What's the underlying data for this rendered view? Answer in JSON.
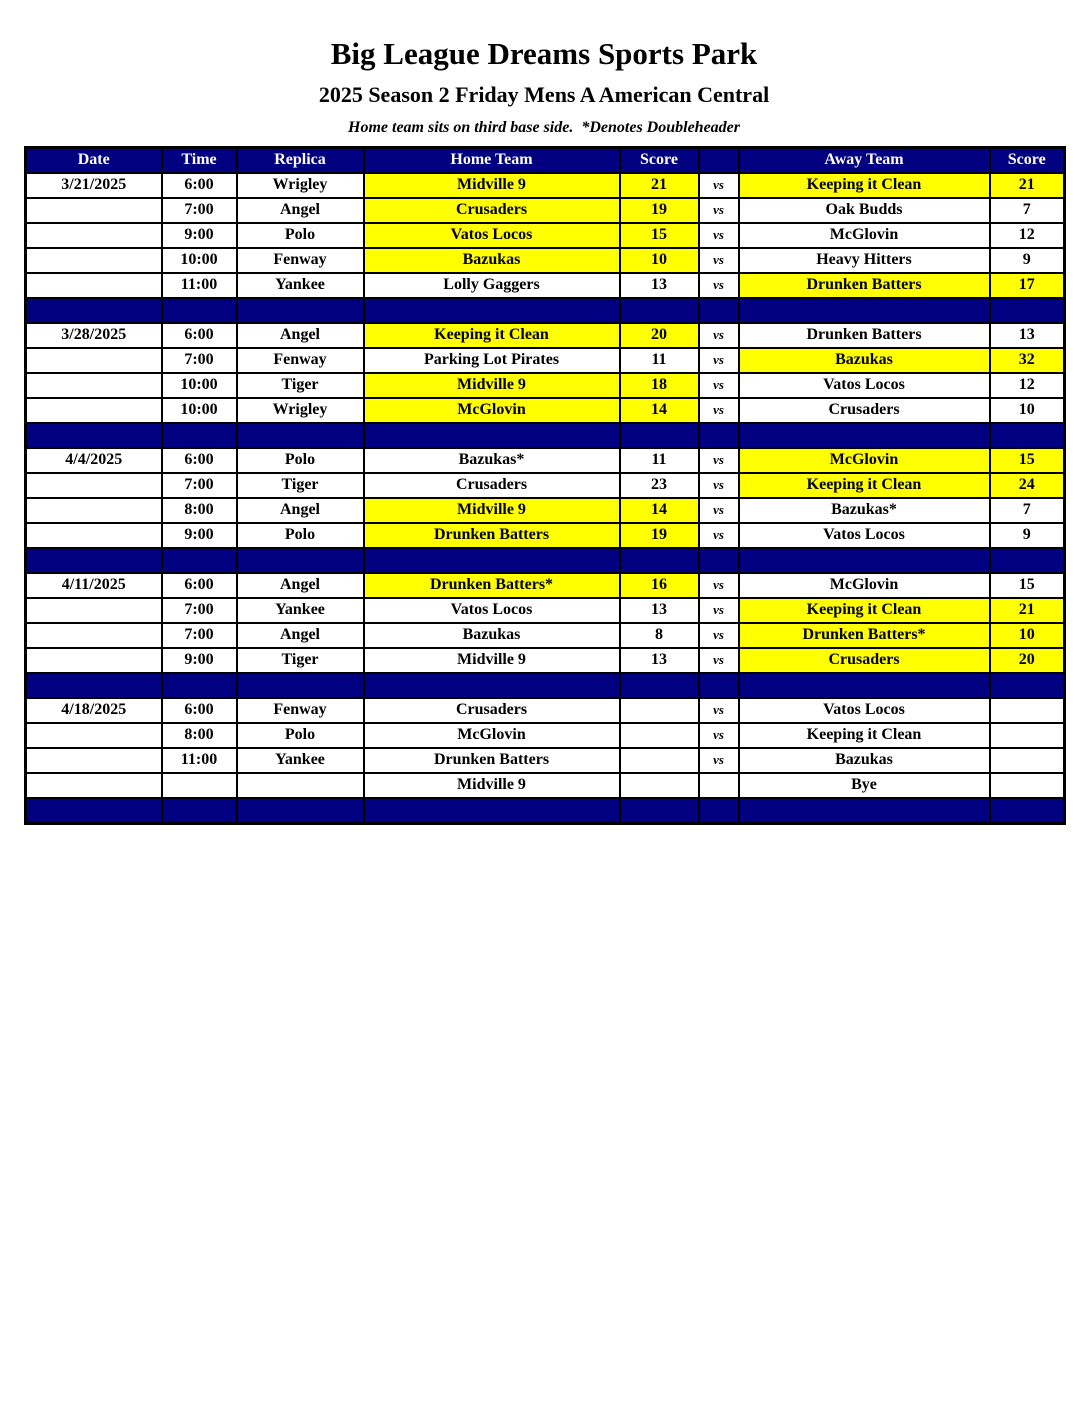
{
  "header": {
    "title": "Big League Dreams Sports Park",
    "subtitle": "2025 Season 2 Friday Mens A American Central",
    "note": "Home team sits on third base side.  *Denotes Doubleheader"
  },
  "colors": {
    "navy_header_bg": "#000080",
    "separator_bg": "#000080",
    "highlight_yellow": "#FFFF00",
    "header_text": "#FFFFFF",
    "body_text": "#000000",
    "grid_border": "#000000"
  },
  "table": {
    "headers": [
      "Date",
      "Time",
      "Replica",
      "Home Team",
      "Score",
      "",
      "Away Team",
      "Score"
    ],
    "blocks": [
      {
        "date": "3/21/2025",
        "games": [
          {
            "time": "6:00",
            "replica": "Wrigley",
            "home": "Midville 9",
            "home_score": "21",
            "vs": "vs",
            "away": "Keeping it Clean",
            "away_score": "21",
            "home_hl": true,
            "away_hl": true
          },
          {
            "time": "7:00",
            "replica": "Angel",
            "home": "Crusaders",
            "home_score": "19",
            "vs": "vs",
            "away": "Oak Budds",
            "away_score": "7",
            "home_hl": true,
            "away_hl": false
          },
          {
            "time": "9:00",
            "replica": "Polo",
            "home": "Vatos Locos",
            "home_score": "15",
            "vs": "vs",
            "away": "McGlovin",
            "away_score": "12",
            "home_hl": true,
            "away_hl": false
          },
          {
            "time": "10:00",
            "replica": "Fenway",
            "home": "Bazukas",
            "home_score": "10",
            "vs": "vs",
            "away": "Heavy Hitters",
            "away_score": "9",
            "home_hl": true,
            "away_hl": false
          },
          {
            "time": "11:00",
            "replica": "Yankee",
            "home": "Lolly Gaggers",
            "home_score": "13",
            "vs": "vs",
            "away": "Drunken Batters",
            "away_score": "17",
            "home_hl": false,
            "away_hl": true
          }
        ]
      },
      {
        "date": "3/28/2025",
        "games": [
          {
            "time": "6:00",
            "replica": "Angel",
            "home": "Keeping it Clean",
            "home_score": "20",
            "vs": "vs",
            "away": "Drunken Batters",
            "away_score": "13",
            "home_hl": true,
            "away_hl": false
          },
          {
            "time": "7:00",
            "replica": "Fenway",
            "home": "Parking Lot Pirates",
            "home_score": "11",
            "vs": "vs",
            "away": "Bazukas",
            "away_score": "32",
            "home_hl": false,
            "away_hl": true
          },
          {
            "time": "10:00",
            "replica": "Tiger",
            "home": "Midville 9",
            "home_score": "18",
            "vs": "vs",
            "away": "Vatos Locos",
            "away_score": "12",
            "home_hl": true,
            "away_hl": false
          },
          {
            "time": "10:00",
            "replica": "Wrigley",
            "home": "McGlovin",
            "home_score": "14",
            "vs": "vs",
            "away": "Crusaders",
            "away_score": "10",
            "home_hl": true,
            "away_hl": false
          }
        ]
      },
      {
        "date": "4/4/2025",
        "games": [
          {
            "time": "6:00",
            "replica": "Polo",
            "home": "Bazukas*",
            "home_score": "11",
            "vs": "vs",
            "away": "McGlovin",
            "away_score": "15",
            "home_hl": false,
            "away_hl": true
          },
          {
            "time": "7:00",
            "replica": "Tiger",
            "home": "Crusaders",
            "home_score": "23",
            "vs": "vs",
            "away": "Keeping it Clean",
            "away_score": "24",
            "home_hl": false,
            "away_hl": true
          },
          {
            "time": "8:00",
            "replica": "Angel",
            "home": "Midville 9",
            "home_score": "14",
            "vs": "vs",
            "away": "Bazukas*",
            "away_score": "7",
            "home_hl": true,
            "away_hl": false
          },
          {
            "time": "9:00",
            "replica": "Polo",
            "home": "Drunken Batters",
            "home_score": "19",
            "vs": "vs",
            "away": "Vatos Locos",
            "away_score": "9",
            "home_hl": true,
            "away_hl": false
          }
        ]
      },
      {
        "date": "4/11/2025",
        "games": [
          {
            "time": "6:00",
            "replica": "Angel",
            "home": "Drunken Batters*",
            "home_score": "16",
            "vs": "vs",
            "away": "McGlovin",
            "away_score": "15",
            "home_hl": true,
            "away_hl": false
          },
          {
            "time": "7:00",
            "replica": "Yankee",
            "home": "Vatos Locos",
            "home_score": "13",
            "vs": "vs",
            "away": "Keeping it Clean",
            "away_score": "21",
            "home_hl": false,
            "away_hl": true
          },
          {
            "time": "7:00",
            "replica": "Angel",
            "home": "Bazukas",
            "home_score": "8",
            "vs": "vs",
            "away": "Drunken Batters*",
            "away_score": "10",
            "home_hl": false,
            "away_hl": true
          },
          {
            "time": "9:00",
            "replica": "Tiger",
            "home": "Midville 9",
            "home_score": "13",
            "vs": "vs",
            "away": "Crusaders",
            "away_score": "20",
            "home_hl": false,
            "away_hl": true
          }
        ]
      },
      {
        "date": "4/18/2025",
        "games": [
          {
            "time": "6:00",
            "replica": "Fenway",
            "home": "Crusaders",
            "home_score": "",
            "vs": "vs",
            "away": "Vatos Locos",
            "away_score": "",
            "home_hl": false,
            "away_hl": false
          },
          {
            "time": "8:00",
            "replica": "Polo",
            "home": "McGlovin",
            "home_score": "",
            "vs": "vs",
            "away": "Keeping it Clean",
            "away_score": "",
            "home_hl": false,
            "away_hl": false
          },
          {
            "time": "11:00",
            "replica": "Yankee",
            "home": "Drunken Batters",
            "home_score": "",
            "vs": "vs",
            "away": "Bazukas",
            "away_score": "",
            "home_hl": false,
            "away_hl": false
          },
          {
            "time": "",
            "replica": "",
            "home": "Midville 9",
            "home_score": "",
            "vs": "",
            "away": "Bye",
            "away_score": "",
            "home_hl": false,
            "away_hl": false
          }
        ]
      }
    ]
  }
}
